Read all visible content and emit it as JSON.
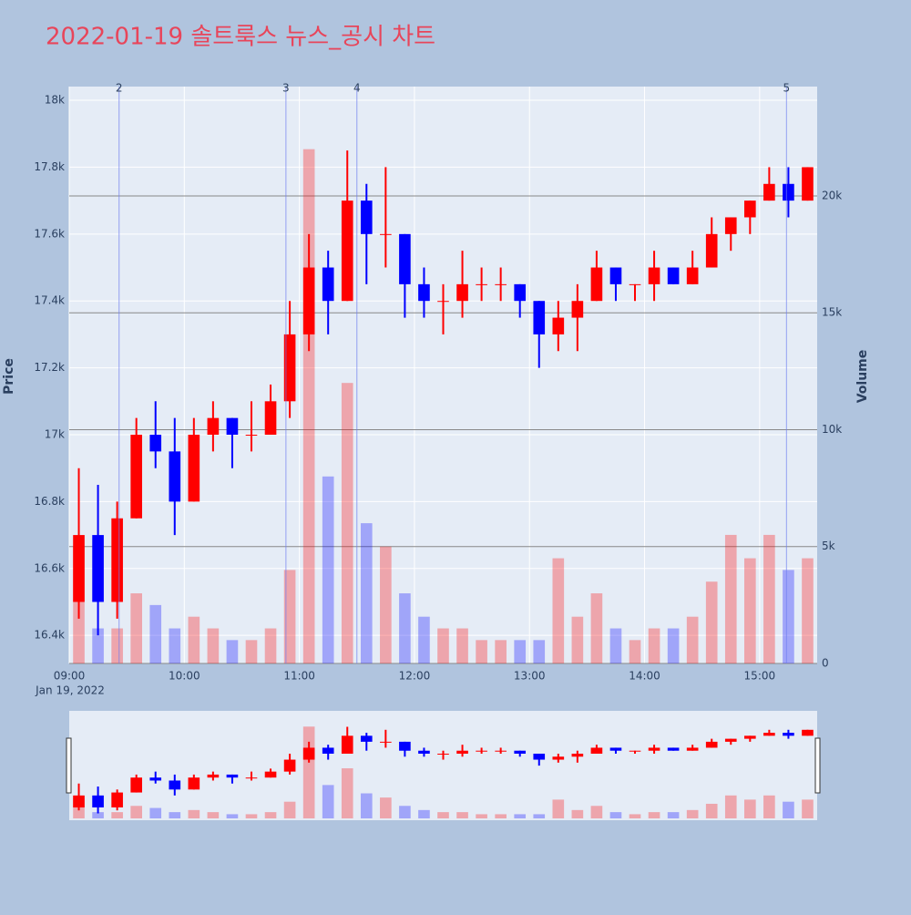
{
  "chart_data": {
    "type": "candlestick",
    "title": "2022-01-19 솔트룩스 뉴스_공시 차트",
    "y_label": "Price",
    "y2_label": "Volume",
    "x_date_label": "Jan 19, 2022",
    "x": [
      "2022-01-19 09:00",
      "2022-01-19 09:10",
      "2022-01-19 09:20",
      "2022-01-19 09:30",
      "2022-01-19 09:40",
      "2022-01-19 09:50",
      "2022-01-19 10:00",
      "2022-01-19 10:10",
      "2022-01-19 10:20",
      "2022-01-19 10:30",
      "2022-01-19 10:40",
      "2022-01-19 10:50",
      "2022-01-19 11:00",
      "2022-01-19 11:10",
      "2022-01-19 11:20",
      "2022-01-19 11:30",
      "2022-01-19 11:40",
      "2022-01-19 11:50",
      "2022-01-19 12:00",
      "2022-01-19 12:10",
      "2022-01-19 12:20",
      "2022-01-19 12:30",
      "2022-01-19 12:40",
      "2022-01-19 12:50",
      "2022-01-19 13:00",
      "2022-01-19 13:10",
      "2022-01-19 13:20",
      "2022-01-19 13:30",
      "2022-01-19 13:40",
      "2022-01-19 13:50",
      "2022-01-19 14:00",
      "2022-01-19 14:10",
      "2022-01-19 14:20",
      "2022-01-19 14:30",
      "2022-01-19 14:40",
      "2022-01-19 14:50",
      "2022-01-19 15:00",
      "2022-01-19 15:10",
      "2022-01-19 15:20"
    ],
    "open": [
      16500,
      16700,
      16500,
      16750,
      17000,
      16950,
      16800,
      17000,
      17050,
      17000,
      17000,
      17100,
      17300,
      17500,
      17400,
      17700,
      17600,
      17600,
      17450,
      17400,
      17400,
      17450,
      17450,
      17450,
      17400,
      17300,
      17350,
      17400,
      17500,
      17450,
      17450,
      17500,
      17450,
      17500,
      17600,
      17650,
      17700,
      17750,
      17700
    ],
    "high": [
      16900,
      16850,
      16800,
      17050,
      17100,
      17050,
      17050,
      17100,
      17050,
      17100,
      17150,
      17400,
      17600,
      17550,
      17850,
      17750,
      17800,
      17600,
      17500,
      17450,
      17550,
      17500,
      17500,
      17450,
      17400,
      17400,
      17450,
      17550,
      17500,
      17450,
      17550,
      17500,
      17550,
      17650,
      17650,
      17700,
      17800,
      17800,
      17800
    ],
    "low": [
      16450,
      16400,
      16450,
      16750,
      16900,
      16700,
      16800,
      16950,
      16900,
      16950,
      17000,
      17050,
      17250,
      17300,
      17400,
      17450,
      17500,
      17350,
      17350,
      17300,
      17350,
      17400,
      17400,
      17350,
      17200,
      17250,
      17250,
      17400,
      17400,
      17400,
      17400,
      17450,
      17450,
      17500,
      17550,
      17600,
      17700,
      17650,
      17700
    ],
    "close": [
      16700,
      16500,
      16750,
      17000,
      16950,
      16800,
      17000,
      17050,
      17000,
      17000,
      17100,
      17300,
      17500,
      17400,
      17700,
      17600,
      17600,
      17450,
      17400,
      17400,
      17450,
      17450,
      17450,
      17400,
      17300,
      17350,
      17400,
      17500,
      17450,
      17450,
      17500,
      17450,
      17500,
      17600,
      17650,
      17700,
      17750,
      17700,
      17800
    ],
    "volume": [
      5000,
      1500,
      1500,
      3000,
      2500,
      1500,
      2000,
      1500,
      1000,
      1000,
      1500,
      4000,
      22000,
      8000,
      12000,
      6000,
      5000,
      3000,
      2000,
      1500,
      1500,
      1000,
      1000,
      1000,
      1000,
      4500,
      2000,
      3000,
      1500,
      1000,
      1500,
      1500,
      2000,
      3500,
      5500,
      4500,
      5500,
      4000,
      4500
    ],
    "increasing_color": "#ff0000",
    "decreasing_color": "#0000ff",
    "xlim": [
      "2022-01-19 09:00",
      "2022-01-19 15:30"
    ],
    "xticks": [
      {
        "value": "2022-01-19 09:00",
        "label": "09:00"
      },
      {
        "value": "2022-01-19 10:00",
        "label": "10:00"
      },
      {
        "value": "2022-01-19 11:00",
        "label": "11:00"
      },
      {
        "value": "2022-01-19 12:00",
        "label": "12:00"
      },
      {
        "value": "2022-01-19 13:00",
        "label": "13:00"
      },
      {
        "value": "2022-01-19 14:00",
        "label": "14:00"
      },
      {
        "value": "2022-01-19 15:00",
        "label": "15:00"
      }
    ],
    "ylim": [
      16316,
      18041
    ],
    "yticks": [
      {
        "value": 16400,
        "label": "16.4k"
      },
      {
        "value": 16600,
        "label": "16.6k"
      },
      {
        "value": 16800,
        "label": "16.8k"
      },
      {
        "value": 17000,
        "label": "17k"
      },
      {
        "value": 17200,
        "label": "17.2k"
      },
      {
        "value": 17400,
        "label": "17.4k"
      },
      {
        "value": 17600,
        "label": "17.6k"
      },
      {
        "value": 17800,
        "label": "17.8k"
      },
      {
        "value": 18000,
        "label": "18k"
      }
    ],
    "y2lim": [
      0,
      24678
    ],
    "y2ticks": [
      0,
      {
        "value": 5000,
        "label": "5k"
      },
      {
        "value": 10000,
        "label": "10k"
      },
      {
        "value": 15000,
        "label": "15k"
      },
      {
        "value": 20000,
        "label": "20k"
      }
    ],
    "vlines": [
      {
        "x": "2022-01-19 09:26",
        "label": "2"
      },
      {
        "x": "2022-01-19 10:53",
        "label": "3"
      },
      {
        "x": "2022-01-19 11:30",
        "label": "4"
      },
      {
        "x": "2022-01-19 15:14",
        "label": "5"
      }
    ],
    "grid": true
  }
}
